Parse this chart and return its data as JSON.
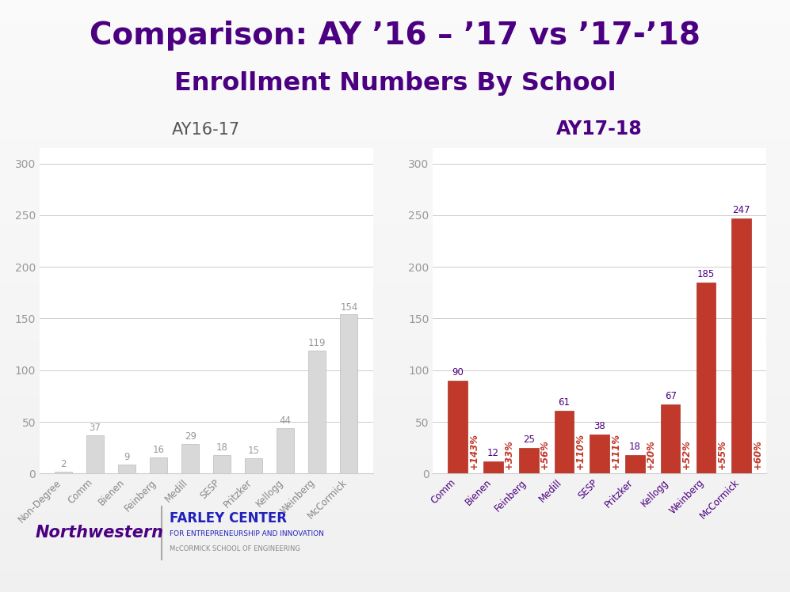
{
  "title_line1": "Comparison: AY ’16 – ’17 vs ’17-’18",
  "title_line2": "Enrollment Numbers By School",
  "title_color": "#4B0082",
  "bg_color": "#dcdcdc",
  "left_title": "AY16-17",
  "right_title": "AY17-18",
  "left_categories": [
    "Non-Degree",
    "Comm",
    "Bienen",
    "Feinberg",
    "Medill",
    "SESP",
    "Pritzker",
    "Kellogg",
    "Weinberg",
    "McCormick"
  ],
  "left_values": [
    2,
    37,
    9,
    16,
    29,
    18,
    15,
    44,
    119,
    154
  ],
  "left_bar_color": "#d8d8d8",
  "left_bar_edge": "#bbbbbb",
  "right_categories": [
    "Comm",
    "Bienen",
    "Feinberg",
    "Medill",
    "SESP",
    "Pritzker",
    "Kellogg",
    "Weinberg",
    "McCormick"
  ],
  "right_values": [
    90,
    12,
    25,
    61,
    38,
    18,
    67,
    185,
    247
  ],
  "right_bar_color": "#c0392b",
  "right_pct_labels": [
    "+143%",
    "+33%",
    "+56%",
    "+110%",
    "+111%",
    "+20%",
    "+52%",
    "+55%",
    "+60%"
  ],
  "pct_color": "#c0392b",
  "val_color_left": "#999999",
  "val_color_right": "#4B0082",
  "ylim": [
    0,
    315
  ],
  "yticks": [
    0,
    50,
    100,
    150,
    200,
    250,
    300
  ],
  "grid_color": "#cccccc",
  "tick_color": "#999999",
  "right_title_color": "#4B0082",
  "left_title_color": "#555555",
  "x_tick_color_right": "#4B0082",
  "northwestern_color": "#4B0082",
  "farley_color": "#2222bb",
  "farley_sub_color": "#2222bb",
  "mccormick_color": "#888888"
}
